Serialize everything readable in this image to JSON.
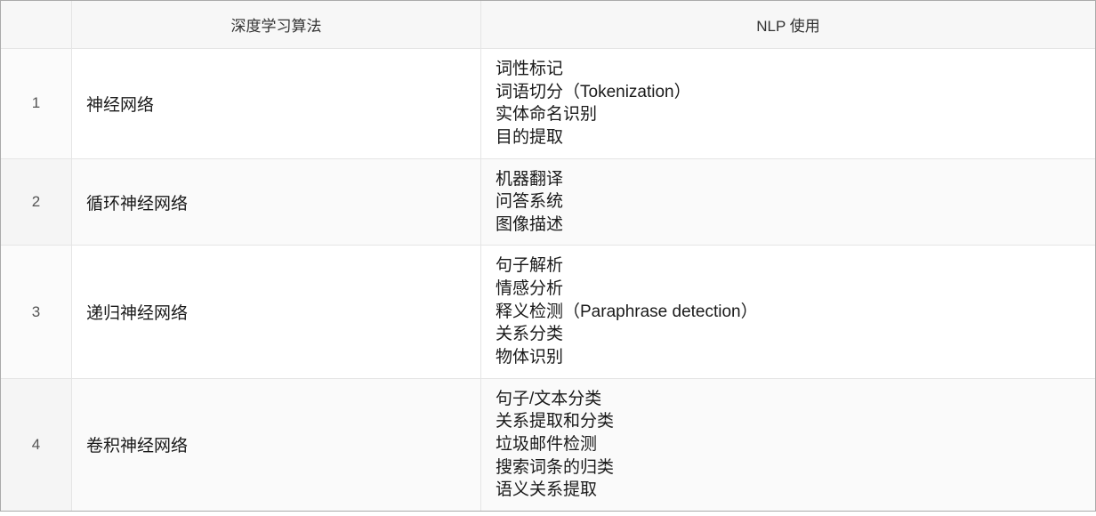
{
  "table": {
    "columns": {
      "index_header": "",
      "algorithm_header": "深度学习算法",
      "uses_header": "NLP 使用"
    },
    "column_widths": {
      "index": 80,
      "algorithm": 460
    },
    "colors": {
      "header_bg": "#f7f7f7",
      "row_even_bg": "#fafafa",
      "row_odd_bg": "#ffffff",
      "border": "#e5e5e5",
      "outer_border": "#aaaaaa",
      "text": "#1a1a1a"
    },
    "font_sizes": {
      "header": 17,
      "body": 19,
      "index": 17
    },
    "rows": [
      {
        "index": "1",
        "algorithm": "神经网络",
        "uses": [
          "词性标记",
          "词语切分（Tokenization）",
          "实体命名识别",
          "目的提取"
        ]
      },
      {
        "index": "2",
        "algorithm": "循环神经网络",
        "uses": [
          "机器翻译",
          "问答系统",
          "图像描述"
        ]
      },
      {
        "index": "3",
        "algorithm": "递归神经网络",
        "uses": [
          "句子解析",
          "情感分析",
          "释义检测（Paraphrase detection）",
          "关系分类",
          "物体识别"
        ]
      },
      {
        "index": "4",
        "algorithm": "卷积神经网络",
        "uses": [
          "句子/文本分类",
          "关系提取和分类",
          "垃圾邮件检测",
          "搜索词条的归类",
          "语义关系提取"
        ]
      }
    ]
  }
}
